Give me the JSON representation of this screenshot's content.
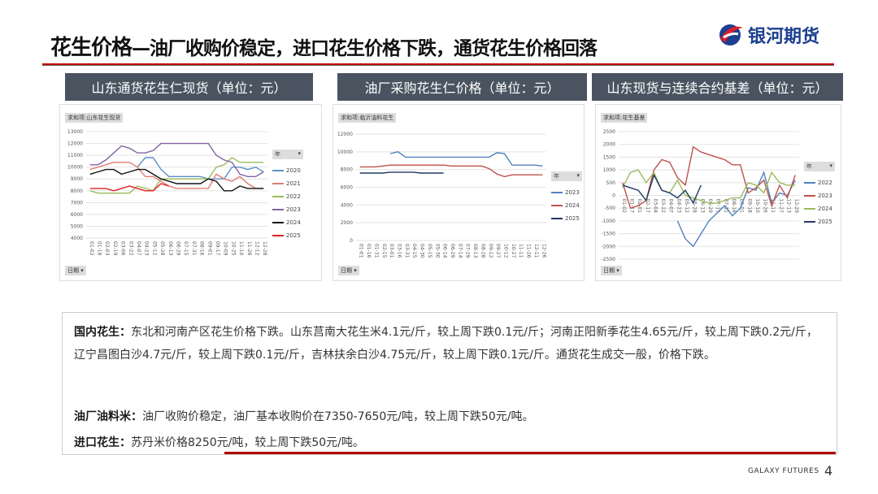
{
  "title": {
    "main": "花生价格",
    "sub": "—油厂收购价稳定，进口花生价格下跌，通货花生价格回落"
  },
  "logo": {
    "text": "银河期货"
  },
  "headers": [
    "山东通货花生仁现货（单位：元）",
    "油厂采购花生仁价格（单位：元）",
    "山东现货与连续合约基差（单位：元）"
  ],
  "chart_data": [
    {
      "type": "line",
      "title": "求和项:山东花生现货",
      "filter_label": "日期",
      "legend_title": "年",
      "ylim": [
        4000,
        13000
      ],
      "ystep": 1000,
      "categories": [
        "01-02",
        "01-18",
        "02-03",
        "02-19",
        "03-06",
        "03-22",
        "04-07",
        "04-23",
        "05-12",
        "05-28",
        "06-13",
        "06-29",
        "07-15",
        "07-31",
        "08-16",
        "09-01",
        "09-17",
        "10-09",
        "10-25",
        "11-10",
        "11-26",
        "12-12",
        "12-28"
      ],
      "series": [
        {
          "name": "2020",
          "color": "#5b8fc9",
          "values": [
            null,
            null,
            null,
            null,
            null,
            null,
            10000,
            10800,
            10800,
            9800,
            9200,
            9200,
            9200,
            9200,
            9200,
            9000,
            9000,
            9000,
            10000,
            10000,
            9800,
            10000,
            9600
          ]
        },
        {
          "name": "2021",
          "color": "#e07b72",
          "values": [
            9800,
            10000,
            10200,
            10400,
            10400,
            10400,
            10000,
            9200,
            9200,
            8800,
            8400,
            8200,
            8200,
            8200,
            8200,
            8200,
            9400,
            9000,
            8800,
            9200,
            8600,
            8200,
            8200
          ]
        },
        {
          "name": "2022",
          "color": "#9bbb59",
          "values": [
            8000,
            7800,
            7800,
            7800,
            7800,
            7800,
            8400,
            8200,
            8000,
            9000,
            9000,
            9000,
            9000,
            9000,
            9000,
            9000,
            10000,
            10200,
            10800,
            10400,
            10400,
            10400,
            10400
          ]
        },
        {
          "name": "2023",
          "color": "#8064a2",
          "values": [
            10200,
            10200,
            10600,
            11200,
            11800,
            11600,
            11200,
            11200,
            11400,
            12000,
            12000,
            12000,
            12000,
            12000,
            12000,
            12000,
            11000,
            10600,
            10400,
            9400,
            9200,
            9200,
            9600
          ]
        },
        {
          "name": "2024",
          "color": "#111111",
          "values": [
            9400,
            9600,
            9800,
            9800,
            9400,
            9600,
            9800,
            9800,
            9400,
            9000,
            8800,
            8600,
            8600,
            8600,
            8600,
            9000,
            8800,
            8000,
            8000,
            8400,
            8200,
            8200,
            8200
          ]
        },
        {
          "name": "2025",
          "color": "#e0201e",
          "values": [
            8200,
            8200,
            8200,
            8000,
            8200,
            8400,
            8200,
            8000,
            8000,
            8600,
            8400,
            null,
            null,
            null,
            null,
            null,
            null,
            null,
            null,
            null,
            null,
            null,
            null
          ]
        }
      ]
    },
    {
      "type": "line",
      "title": "求和项:临沂油料花生",
      "filter_label": "日期",
      "legend_title": "年",
      "ylim": [
        0,
        12000
      ],
      "ystep": 2000,
      "categories": [
        "01-01",
        "01-16",
        "01-31",
        "02-15",
        "03-01",
        "03-16",
        "03-31",
        "04-15",
        "04-30",
        "05-15",
        "05-30",
        "06-14",
        "06-29",
        "07-14",
        "07-29",
        "08-13",
        "08-28",
        "09-12",
        "09-27",
        "10-12",
        "10-27",
        "11-11",
        "11-26",
        "12-11",
        "12-26"
      ],
      "series": [
        {
          "name": "2023",
          "color": "#4f81bd",
          "values": [
            null,
            null,
            null,
            null,
            9800,
            10000,
            9400,
            9400,
            9400,
            9400,
            9400,
            9400,
            9400,
            9400,
            9400,
            9400,
            9400,
            9400,
            9900,
            9800,
            8500,
            8500,
            8500,
            8500,
            8400
          ]
        },
        {
          "name": "2024",
          "color": "#c0504d",
          "values": [
            8300,
            8300,
            8300,
            8400,
            8500,
            8500,
            8500,
            8500,
            8500,
            8500,
            8500,
            8500,
            8400,
            8400,
            8400,
            8400,
            8400,
            8100,
            7500,
            7200,
            7400,
            7400,
            7400,
            7400,
            7400
          ]
        },
        {
          "name": "2025",
          "color": "#1f3864",
          "values": [
            7600,
            7600,
            7600,
            7600,
            7700,
            7700,
            7700,
            7700,
            7600,
            7600,
            7600,
            7600,
            null,
            null,
            null,
            null,
            null,
            null,
            null,
            null,
            null,
            null,
            null,
            null,
            null
          ]
        }
      ]
    },
    {
      "type": "line",
      "title": "求和项:花生基差",
      "filter_label": "日期",
      "legend_title": "年",
      "ylim": [
        -2500,
        2500
      ],
      "ystep": 500,
      "categories": [
        "01-02",
        "01-17",
        "02-01",
        "02-17",
        "03-04",
        "03-22",
        "04-07",
        "04-23",
        "05-12",
        "05-28",
        "06-13",
        "06-29",
        "07-15",
        "07-31",
        "08-16",
        "09-01",
        "09-18",
        "10-10",
        "10-26",
        "11-11",
        "11-27",
        "12-13",
        "12-29"
      ],
      "series": [
        {
          "name": "2022",
          "color": "#4f81bd",
          "values": [
            null,
            null,
            null,
            null,
            null,
            null,
            null,
            -1000,
            -1700,
            -2000,
            -1500,
            -1000,
            -700,
            -400,
            -800,
            -500,
            300,
            200,
            900,
            -300,
            100,
            0,
            600
          ]
        },
        {
          "name": "2023",
          "color": "#c0504d",
          "values": [
            500,
            -500,
            -400,
            -200,
            1000,
            1400,
            1300,
            700,
            400,
            1900,
            1700,
            1600,
            1500,
            1400,
            1200,
            1200,
            100,
            300,
            600,
            -400,
            400,
            -100,
            800
          ]
        },
        {
          "name": "2024",
          "color": "#9bbb59",
          "values": [
            300,
            900,
            1000,
            500,
            900,
            200,
            100,
            600,
            0,
            -100,
            -200,
            -300,
            -300,
            -200,
            -100,
            -100,
            500,
            400,
            100,
            900,
            500,
            400,
            400
          ]
        },
        {
          "name": "2025",
          "color": "#1f3864",
          "values": [
            400,
            300,
            200,
            -200,
            800,
            200,
            100,
            -100,
            200,
            -300,
            400,
            null,
            null,
            null,
            null,
            null,
            null,
            null,
            null,
            null,
            null,
            null,
            null
          ]
        }
      ]
    }
  ],
  "text": {
    "p1_label": "国内花生：",
    "p1": "东北和河南产区花生价格下跌。山东莒南大花生米4.1元/斤，较上周下跌0.1元/斤；河南正阳新季花生4.65元/斤，较上周下跌0.2元/斤，辽宁昌图白沙4.7元/斤，较上周下跌0.1元/斤，吉林扶余白沙4.75元/斤，较上周下跌0.1元/斤。通货花生成交一般，价格下跌。",
    "p2_label": "油厂油料米：",
    "p2": "油厂收购价稳定，油厂基本收购价在7350-7650元/吨，较上周下跌50元/吨。",
    "p3_label": "进口花生：",
    "p3": "苏丹米价格8250元/吨，较上周下跌50元/吨。"
  },
  "footer": {
    "brand": "GALAXY FUTURES",
    "page": "4"
  }
}
